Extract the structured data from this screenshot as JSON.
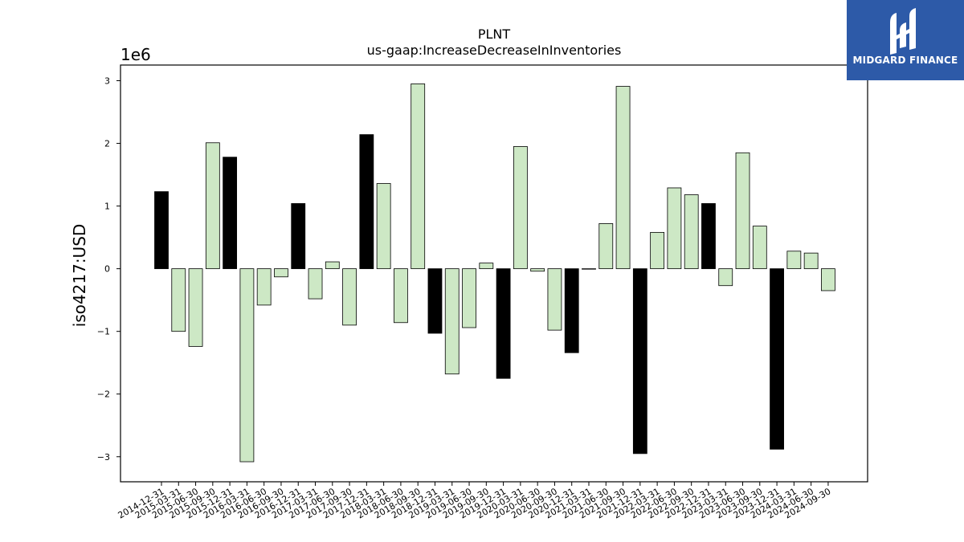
{
  "chart_data": {
    "type": "bar",
    "title": "PLNT",
    "subtitle": "us-gaap:IncreaseDecreaseInInventories",
    "ylabel": "iso4217:USD",
    "offset_label": "1e6",
    "ylim": [
      -3.4,
      3.25
    ],
    "yticks": [
      -3,
      -2,
      -1,
      0,
      1,
      2,
      3
    ],
    "ytick_labels": [
      "−3",
      "−2",
      "−1",
      "0",
      "1",
      "2",
      "3"
    ],
    "categories": [
      "2014-12-31",
      "2015-03-31",
      "2015-06-30",
      "2015-09-30",
      "2015-12-31",
      "2016-03-31",
      "2016-06-30",
      "2016-09-30",
      "2016-12-31",
      "2017-03-31",
      "2017-06-30",
      "2017-09-30",
      "2017-12-31",
      "2018-03-31",
      "2018-06-30",
      "2018-09-30",
      "2018-12-31",
      "2019-03-31",
      "2019-06-30",
      "2019-09-30",
      "2019-12-31",
      "2020-03-31",
      "2020-06-30",
      "2020-09-30",
      "2020-12-31",
      "2021-03-31",
      "2021-06-30",
      "2021-09-30",
      "2021-12-31",
      "2022-03-31",
      "2022-06-30",
      "2022-09-30",
      "2022-12-31",
      "2023-03-31",
      "2023-06-30",
      "2023-09-30",
      "2023-12-31",
      "2024-03-31",
      "2024-06-30",
      "2024-09-30"
    ],
    "values": [
      1.23,
      -1.0,
      -1.24,
      2.01,
      1.78,
      -3.08,
      -0.58,
      -0.13,
      1.04,
      -0.48,
      0.11,
      -0.9,
      2.14,
      1.36,
      -0.86,
      2.95,
      -1.03,
      -1.68,
      -0.94,
      0.09,
      -1.75,
      1.95,
      -0.04,
      -0.98,
      -1.34,
      0.0,
      0.72,
      2.91,
      -2.95,
      0.58,
      1.29,
      1.18,
      1.04,
      -0.27,
      1.85,
      0.68,
      -2.88,
      0.28,
      0.25,
      -0.35
    ],
    "highlight": [
      true,
      false,
      false,
      false,
      true,
      false,
      false,
      false,
      true,
      false,
      false,
      false,
      true,
      false,
      false,
      false,
      true,
      false,
      false,
      false,
      true,
      false,
      false,
      false,
      true,
      false,
      false,
      false,
      true,
      false,
      false,
      false,
      true,
      false,
      false,
      false,
      true,
      false,
      false,
      false
    ],
    "colors": {
      "normal_fill": "#cde8c5",
      "highlight_fill": "#000000",
      "edge": "#000000"
    },
    "grid": false,
    "legend": "none"
  },
  "logo": {
    "text": "MIDGARD FINANCE",
    "background": "#2d5aa8"
  }
}
